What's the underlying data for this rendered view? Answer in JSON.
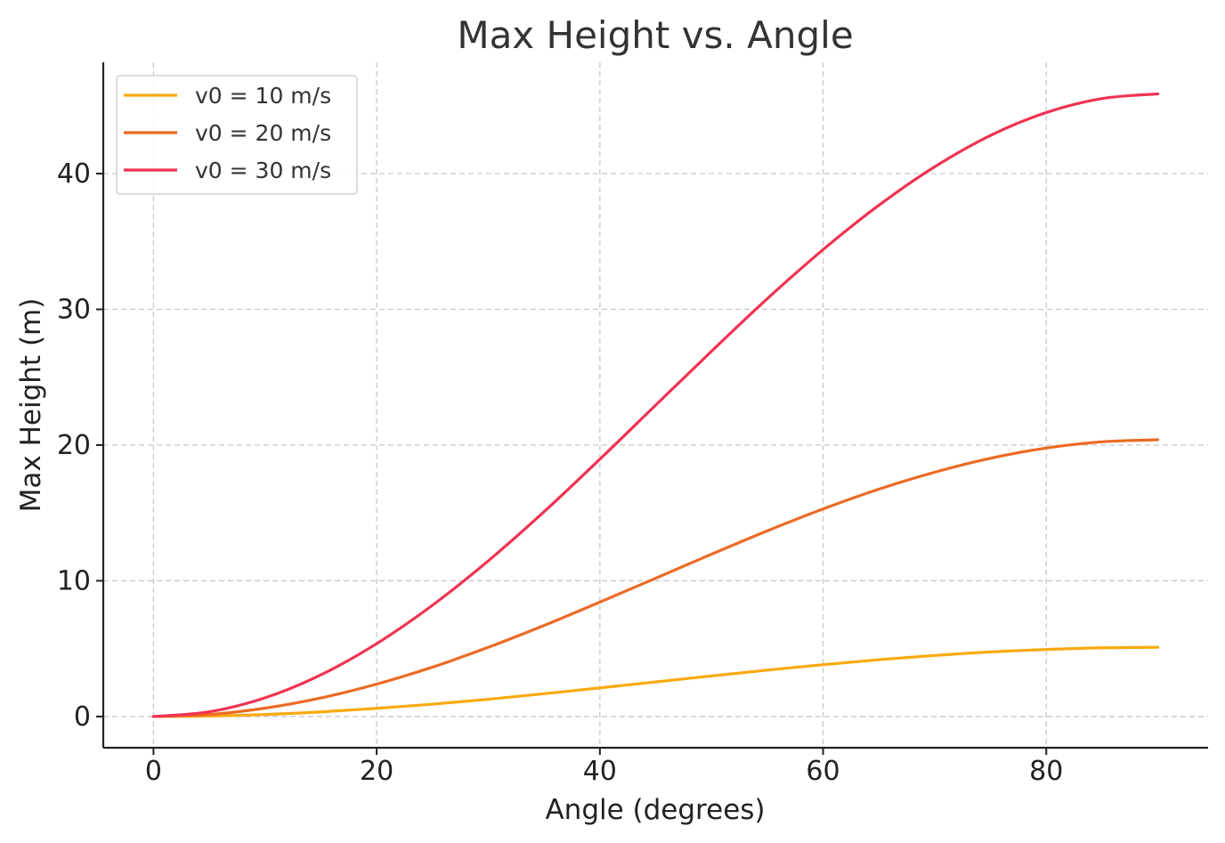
{
  "chart_data": {
    "type": "line",
    "title": "Max Height vs. Angle",
    "xlabel": "Angle (degrees)",
    "ylabel": "Max Height (m)",
    "xlim": [
      -4.5,
      94.5
    ],
    "ylim": [
      -2.3,
      48.2
    ],
    "xticks": [
      0,
      20,
      40,
      60,
      80
    ],
    "yticks": [
      0,
      10,
      20,
      30,
      40
    ],
    "grid": true,
    "legend_position": "top-left",
    "x": [
      0,
      5,
      10,
      15,
      20,
      25,
      30,
      35,
      40,
      45,
      50,
      55,
      60,
      65,
      70,
      75,
      80,
      85,
      90
    ],
    "series": [
      {
        "name": "v0 = 10 m/s",
        "color": "#f9a90f",
        "values": [
          0,
          0.04,
          0.15,
          0.34,
          0.6,
          0.91,
          1.27,
          1.68,
          2.11,
          2.55,
          2.99,
          3.42,
          3.82,
          4.19,
          4.5,
          4.76,
          4.94,
          5.06,
          5.1
        ]
      },
      {
        "name": "v0 = 20 m/s",
        "color": "#ec6a24",
        "values": [
          0,
          0.15,
          0.62,
          1.37,
          2.39,
          3.64,
          5.1,
          6.71,
          8.43,
          10.19,
          11.96,
          13.68,
          15.29,
          16.75,
          18.0,
          19.03,
          19.78,
          20.24,
          20.39
        ]
      },
      {
        "name": "v0 = 30 m/s",
        "color": "#ef3352",
        "values": [
          0,
          0.35,
          1.38,
          3.07,
          5.37,
          8.2,
          11.47,
          15.09,
          18.96,
          22.94,
          26.91,
          30.78,
          34.4,
          37.67,
          40.5,
          42.81,
          44.5,
          45.53,
          45.87
        ]
      }
    ]
  }
}
